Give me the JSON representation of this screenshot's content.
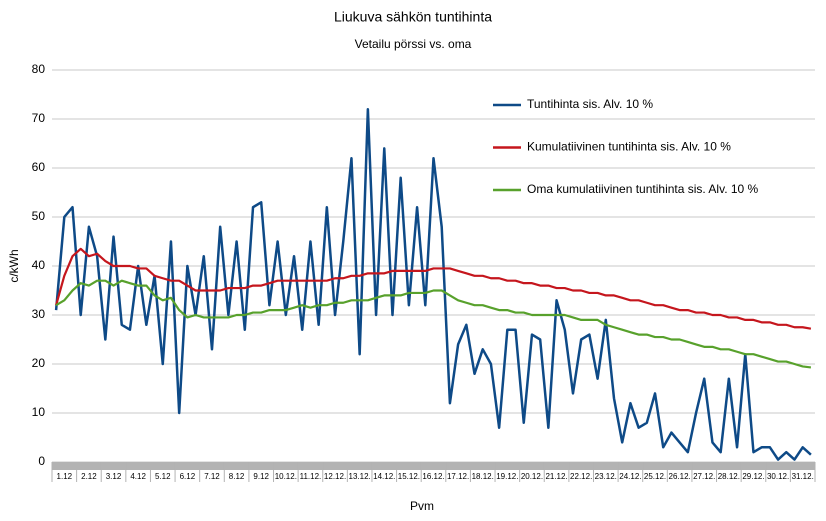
{
  "chart_data": {
    "type": "line",
    "title": "Liukuva sähkön tuntihinta",
    "subtitle": "Vetailu pörssi vs. oma",
    "y_label": "c/kWh",
    "x_label": "Pvm",
    "categories": [
      null,
      "1.12",
      null,
      null,
      "2.12",
      null,
      null,
      "3.12",
      null,
      null,
      "4.12",
      null,
      null,
      "5.12",
      null,
      null,
      "6.12",
      null,
      null,
      "7.12",
      null,
      null,
      "8.12",
      null,
      null,
      "9.12",
      null,
      null,
      "10.12.",
      null,
      null,
      "11.12.",
      null,
      null,
      "12.12.",
      null,
      null,
      "13.12.",
      null,
      null,
      "14.12.",
      null,
      null,
      "15.12.",
      null,
      null,
      "16.12.",
      null,
      null,
      "17.12.",
      null,
      null,
      "18.12.",
      null,
      null,
      "19.12.",
      null,
      null,
      "20.12.",
      null,
      null,
      "21.12.",
      null,
      null,
      "22.12.",
      null,
      null,
      "23.12.",
      null,
      null,
      "24.12.",
      null,
      null,
      "25.12.",
      null,
      null,
      "26.12.",
      null,
      null,
      "27.12.",
      null,
      null,
      "28.12.",
      null,
      null,
      "29.12.",
      null,
      null,
      "30.12.",
      null,
      null,
      "31.12.",
      null
    ],
    "series": [
      {
        "name": "Tuntihinta sis. Alv. 10 %",
        "color": "#0e4a87",
        "values": [
          31,
          50,
          52,
          30,
          48,
          42,
          25,
          46,
          28,
          27,
          40,
          28,
          38,
          20,
          45,
          10,
          40,
          30,
          42,
          23,
          48,
          30,
          45,
          27,
          52,
          53,
          32,
          45,
          30,
          42,
          27,
          45,
          28,
          52,
          30,
          45,
          62,
          22,
          72,
          30,
          64,
          30,
          58,
          32,
          52,
          32,
          62,
          48,
          12,
          24,
          28,
          18,
          23,
          20,
          7,
          27,
          27,
          8,
          26,
          25,
          7,
          33,
          27,
          14,
          25,
          26,
          17,
          29,
          13,
          4,
          12,
          7,
          8,
          14,
          3,
          6,
          4,
          2,
          10,
          17,
          4,
          2,
          17,
          3,
          22,
          2,
          3,
          3,
          0.5,
          2,
          0.5,
          3,
          1.5
        ]
      },
      {
        "name": "Kumulatiivinen tuntihinta sis. Alv. 10 %",
        "color": "#c5161d",
        "values": [
          32,
          38,
          42,
          43.5,
          42,
          42.5,
          41,
          40,
          40,
          40,
          39.5,
          39.5,
          38,
          37.5,
          37,
          37,
          36,
          35,
          35,
          35,
          35,
          35.5,
          35.5,
          35.5,
          36,
          36,
          36.5,
          37,
          37,
          37,
          37,
          37,
          37,
          37,
          37.5,
          37.5,
          38,
          38,
          38.5,
          38.5,
          38.5,
          39,
          39,
          39,
          39,
          39,
          39.5,
          39.5,
          39.5,
          39,
          38.5,
          38,
          38,
          37.5,
          37.5,
          37,
          37,
          36.5,
          36.5,
          36,
          36,
          35.5,
          35.5,
          35,
          35,
          34.5,
          34.5,
          34,
          34,
          33.5,
          33,
          33,
          32.5,
          32,
          32,
          31.5,
          31,
          31,
          30.5,
          30.5,
          30,
          30,
          29.5,
          29.5,
          29,
          29,
          28.5,
          28.5,
          28,
          28,
          27.5,
          27.5,
          27.2
        ]
      },
      {
        "name": "Oma kumulatiivinen tuntihinta sis. Alv. 10 %",
        "color": "#58a12c",
        "values": [
          32,
          33,
          35,
          36.5,
          36,
          37,
          37,
          36,
          37,
          36.5,
          36,
          36,
          34,
          33,
          33.5,
          31,
          29.5,
          30,
          29.5,
          29.5,
          29.5,
          29.5,
          30,
          30,
          30.5,
          30.5,
          31,
          31,
          31,
          31.5,
          32,
          31.5,
          32,
          32,
          32.5,
          32.5,
          33,
          33,
          33,
          33.5,
          34,
          34,
          34,
          34.5,
          34.5,
          34.5,
          35,
          35,
          34,
          33,
          32.5,
          32,
          32,
          31.5,
          31,
          31,
          30.5,
          30.5,
          30,
          30,
          30,
          30,
          30,
          29.5,
          29,
          29,
          29,
          28,
          27.5,
          27,
          26.5,
          26,
          26,
          25.5,
          25.5,
          25,
          25,
          24.5,
          24,
          23.5,
          23.5,
          23,
          23,
          22.5,
          22,
          22,
          21.5,
          21,
          20.5,
          20.5,
          20,
          19.5,
          19.3
        ]
      }
    ],
    "ylim": [
      0,
      80
    ],
    "yticks": [
      0,
      10,
      20,
      30,
      40,
      50,
      60,
      70,
      80
    ],
    "grid": true,
    "legend": "upper right"
  }
}
